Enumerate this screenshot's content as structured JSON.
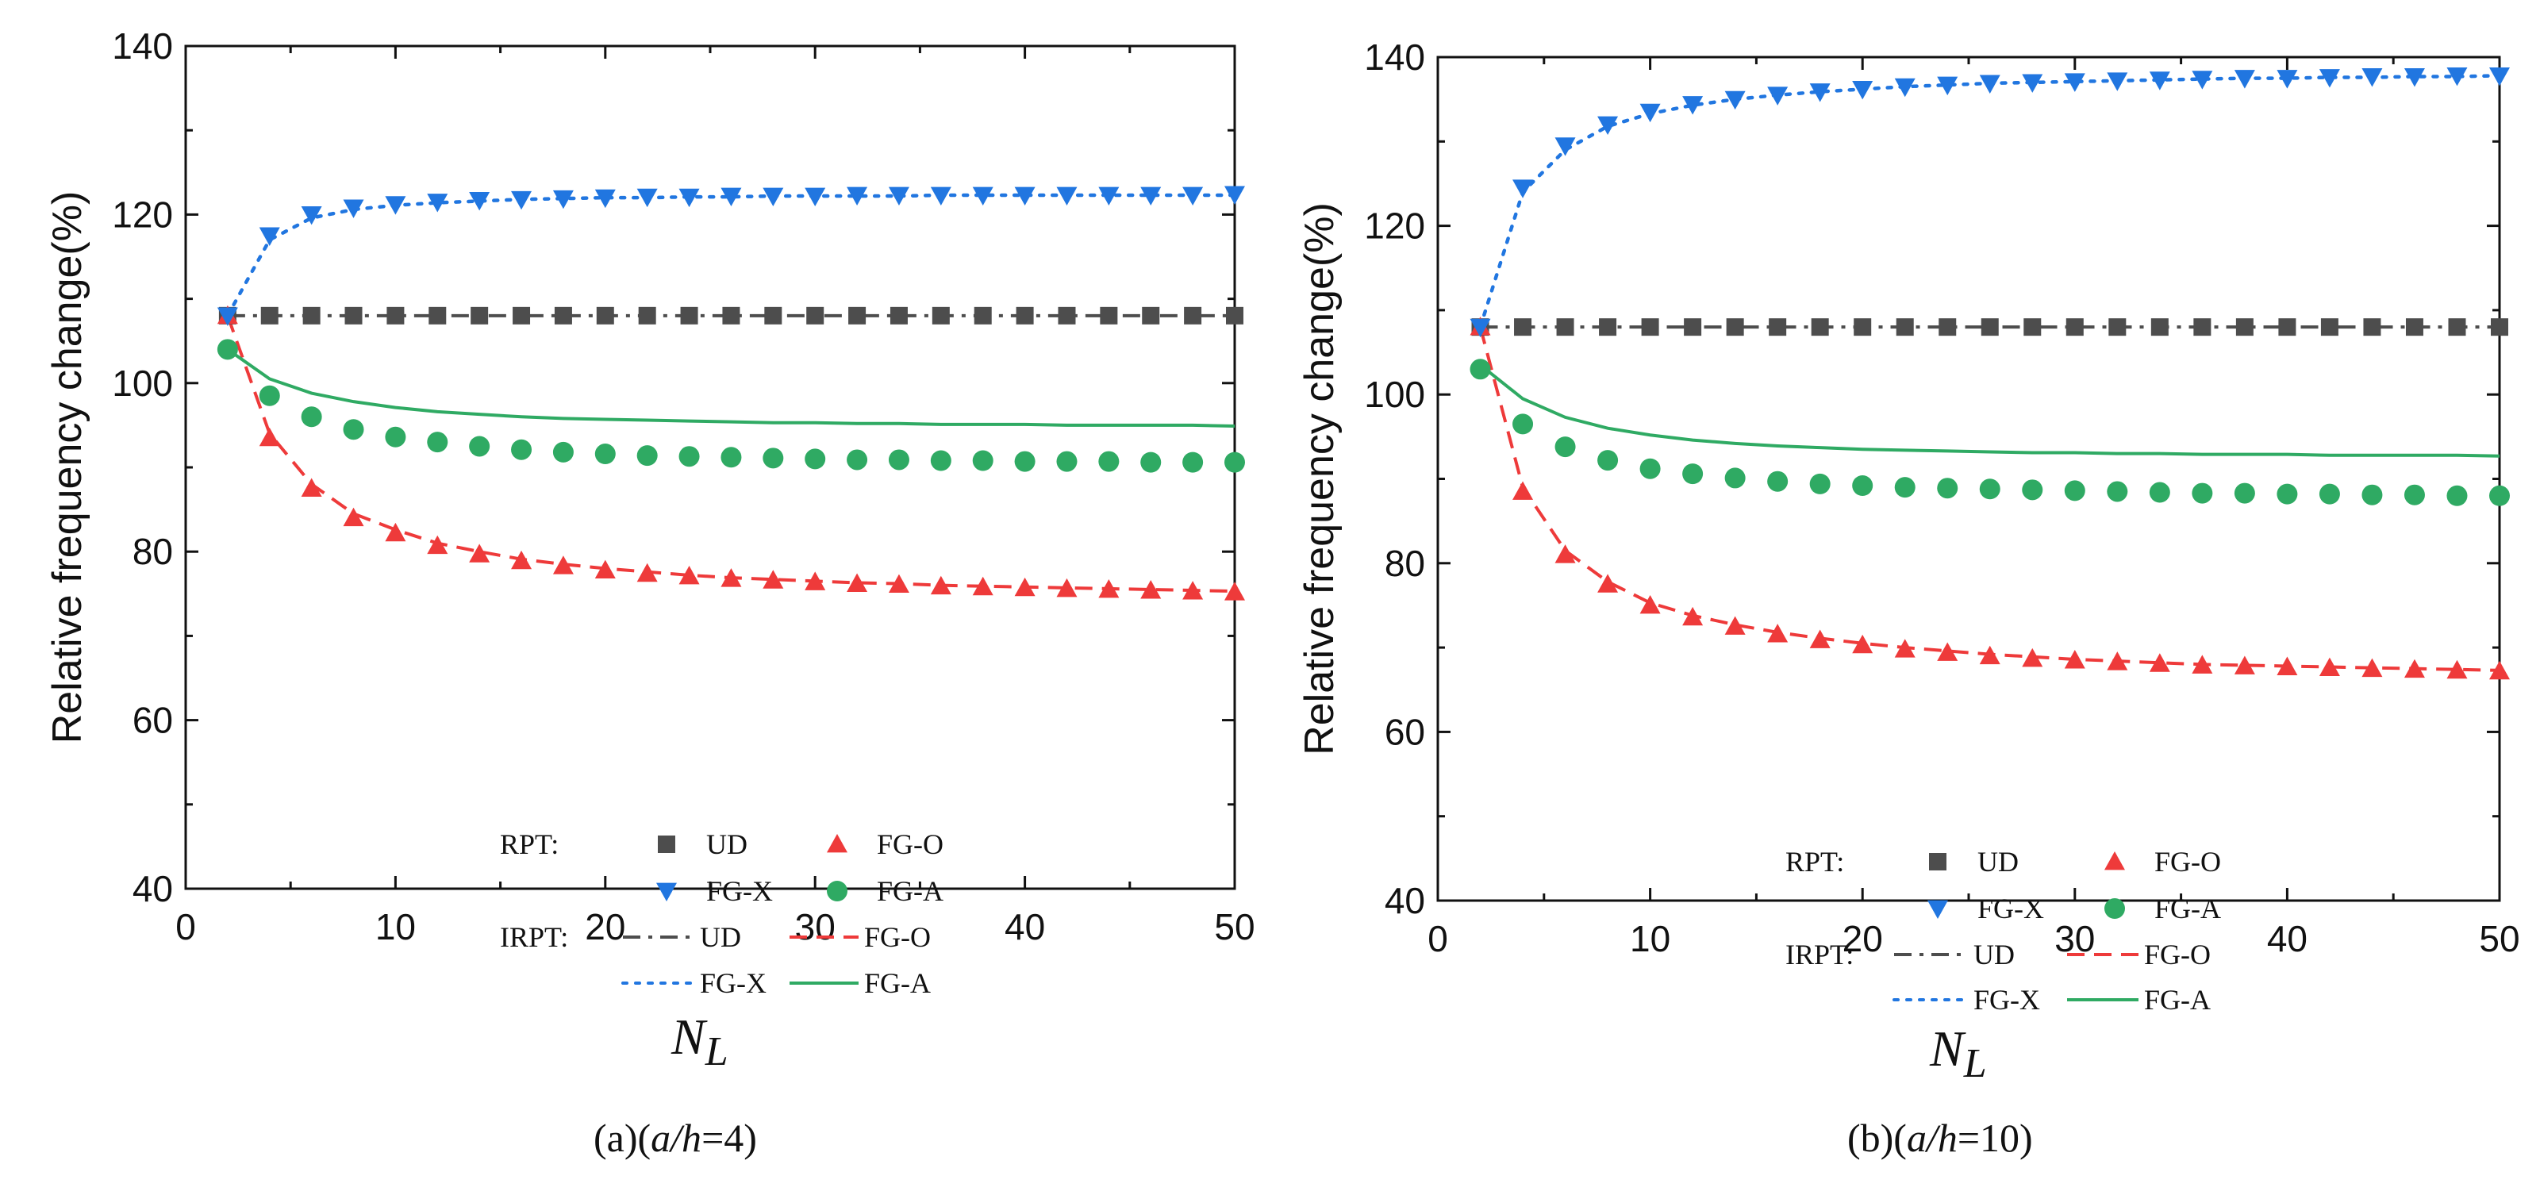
{
  "figure": {
    "x_axis_symbol": "N",
    "x_axis_subscript": "L",
    "legend": {
      "rpt_prefix": "RPT:",
      "irpt_prefix": "IRPT:"
    }
  },
  "colors": {
    "UD": "#4d4d4d",
    "FG-X": "#2176e0",
    "FG-O": "#ee3a3a",
    "FG-A": "#2faa63"
  },
  "chart_data": [
    {
      "type": "line",
      "caption_prefix": "(a)(",
      "caption_ratio": "a/h",
      "caption_suffix": "=4)",
      "ylabel": "Relative frequency change(%)",
      "xlim": [
        0,
        50
      ],
      "ylim": [
        40,
        140
      ],
      "xticks": [
        0,
        10,
        20,
        30,
        40,
        50
      ],
      "yticks": [
        40,
        60,
        80,
        100,
        120,
        140
      ],
      "x": [
        2,
        4,
        6,
        8,
        10,
        12,
        14,
        16,
        18,
        20,
        22,
        24,
        26,
        28,
        30,
        32,
        34,
        36,
        38,
        40,
        42,
        44,
        46,
        48,
        50
      ],
      "series": [
        {
          "name": "UD",
          "method": "RPT",
          "marker": "square",
          "values": [
            108,
            108,
            108,
            108,
            108,
            108,
            108,
            108,
            108,
            108,
            108,
            108,
            108,
            108,
            108,
            108,
            108,
            108,
            108,
            108,
            108,
            108,
            108,
            108,
            108
          ]
        },
        {
          "name": "FG-O",
          "method": "RPT",
          "marker": "triangle-up",
          "values": [
            108,
            93.5,
            87.5,
            84,
            82.2,
            80.7,
            79.7,
            78.9,
            78.3,
            77.8,
            77.4,
            77.1,
            76.8,
            76.6,
            76.4,
            76.2,
            76.1,
            75.9,
            75.8,
            75.7,
            75.6,
            75.5,
            75.4,
            75.3,
            75.2
          ]
        },
        {
          "name": "FG-X",
          "method": "RPT",
          "marker": "triangle-down",
          "values": [
            108,
            117.5,
            120,
            120.8,
            121.2,
            121.5,
            121.7,
            121.8,
            121.9,
            122,
            122.1,
            122.1,
            122.2,
            122.2,
            122.2,
            122.3,
            122.3,
            122.3,
            122.3,
            122.3,
            122.3,
            122.3,
            122.3,
            122.3,
            122.4
          ]
        },
        {
          "name": "FG-A",
          "method": "RPT",
          "marker": "circle",
          "values": [
            104,
            98.5,
            96,
            94.5,
            93.6,
            93,
            92.5,
            92.1,
            91.8,
            91.6,
            91.4,
            91.3,
            91.2,
            91.1,
            91,
            90.9,
            90.9,
            90.8,
            90.8,
            90.7,
            90.7,
            90.7,
            90.6,
            90.6,
            90.6
          ]
        },
        {
          "name": "UD",
          "method": "IRPT",
          "dash": "dashdot",
          "values": [
            108,
            108,
            108,
            108,
            108,
            108,
            108,
            108,
            108,
            108,
            108,
            108,
            108,
            108,
            108,
            108,
            108,
            108,
            108,
            108,
            108,
            108,
            108,
            108,
            108
          ]
        },
        {
          "name": "FG-O",
          "method": "IRPT",
          "dash": "dash",
          "values": [
            108,
            94,
            88,
            84.5,
            82.6,
            81,
            80,
            79.1,
            78.5,
            78,
            77.6,
            77.2,
            76.9,
            76.7,
            76.5,
            76.3,
            76.2,
            76,
            75.9,
            75.8,
            75.7,
            75.6,
            75.5,
            75.4,
            75.3
          ]
        },
        {
          "name": "FG-X",
          "method": "IRPT",
          "dash": "dot",
          "values": [
            108,
            117,
            119.6,
            120.6,
            121.1,
            121.4,
            121.6,
            121.8,
            121.9,
            122,
            122,
            122.1,
            122.1,
            122.2,
            122.2,
            122.2,
            122.2,
            122.3,
            122.3,
            122.3,
            122.3,
            122.3,
            122.3,
            122.3,
            122.3
          ]
        },
        {
          "name": "FG-A",
          "method": "IRPT",
          "dash": "solid",
          "values": [
            104,
            100.5,
            98.8,
            97.8,
            97.1,
            96.6,
            96.3,
            96,
            95.8,
            95.7,
            95.6,
            95.5,
            95.4,
            95.3,
            95.3,
            95.2,
            95.2,
            95.1,
            95.1,
            95.1,
            95,
            95,
            95,
            95,
            94.9
          ]
        }
      ]
    },
    {
      "type": "line",
      "caption_prefix": "(b)(",
      "caption_ratio": "a/h",
      "caption_suffix": "=10)",
      "ylabel": "Relative frequency change(%)",
      "xlim": [
        0,
        50
      ],
      "ylim": [
        40,
        140
      ],
      "xticks": [
        0,
        10,
        20,
        30,
        40,
        50
      ],
      "yticks": [
        40,
        60,
        80,
        100,
        120,
        140
      ],
      "x": [
        2,
        4,
        6,
        8,
        10,
        12,
        14,
        16,
        18,
        20,
        22,
        24,
        26,
        28,
        30,
        32,
        34,
        36,
        38,
        40,
        42,
        44,
        46,
        48,
        50
      ],
      "series": [
        {
          "name": "UD",
          "method": "RPT",
          "marker": "square",
          "values": [
            108,
            108,
            108,
            108,
            108,
            108,
            108,
            108,
            108,
            108,
            108,
            108,
            108,
            108,
            108,
            108,
            108,
            108,
            108,
            108,
            108,
            108,
            108,
            108,
            108
          ]
        },
        {
          "name": "FG-O",
          "method": "RPT",
          "marker": "triangle-up",
          "values": [
            108,
            88.5,
            81,
            77.5,
            75,
            73.6,
            72.5,
            71.6,
            70.9,
            70.3,
            69.8,
            69.4,
            69,
            68.7,
            68.5,
            68.3,
            68.1,
            67.9,
            67.8,
            67.7,
            67.6,
            67.5,
            67.4,
            67.3,
            67.2
          ]
        },
        {
          "name": "FG-X",
          "method": "RPT",
          "marker": "triangle-down",
          "values": [
            108,
            124.5,
            129.5,
            132,
            133.5,
            134.4,
            135,
            135.5,
            135.9,
            136.2,
            136.5,
            136.7,
            136.9,
            137,
            137.1,
            137.2,
            137.3,
            137.4,
            137.5,
            137.5,
            137.6,
            137.7,
            137.7,
            137.8,
            137.8
          ]
        },
        {
          "name": "FG-A",
          "method": "RPT",
          "marker": "circle",
          "values": [
            103,
            96.5,
            93.8,
            92.2,
            91.2,
            90.6,
            90.1,
            89.7,
            89.4,
            89.2,
            89,
            88.9,
            88.8,
            88.7,
            88.6,
            88.5,
            88.4,
            88.3,
            88.3,
            88.2,
            88.2,
            88.1,
            88.1,
            88,
            88
          ]
        },
        {
          "name": "UD",
          "method": "IRPT",
          "dash": "dashdot",
          "values": [
            108,
            108,
            108,
            108,
            108,
            108,
            108,
            108,
            108,
            108,
            108,
            108,
            108,
            108,
            108,
            108,
            108,
            108,
            108,
            108,
            108,
            108,
            108,
            108,
            108
          ]
        },
        {
          "name": "FG-O",
          "method": "IRPT",
          "dash": "dash",
          "values": [
            108,
            89,
            81.5,
            77.8,
            75.3,
            73.8,
            72.7,
            71.8,
            71.1,
            70.5,
            70,
            69.6,
            69.2,
            68.9,
            68.6,
            68.4,
            68.2,
            68,
            67.9,
            67.8,
            67.7,
            67.6,
            67.5,
            67.4,
            67.3
          ]
        },
        {
          "name": "FG-X",
          "method": "IRPT",
          "dash": "dot",
          "values": [
            108,
            124,
            129,
            131.8,
            133.3,
            134.3,
            135,
            135.5,
            135.9,
            136.2,
            136.5,
            136.7,
            136.9,
            137,
            137.1,
            137.2,
            137.3,
            137.4,
            137.5,
            137.5,
            137.6,
            137.6,
            137.7,
            137.7,
            137.8
          ]
        },
        {
          "name": "FG-A",
          "method": "IRPT",
          "dash": "solid",
          "values": [
            103.5,
            99.5,
            97.3,
            96,
            95.2,
            94.6,
            94.2,
            93.9,
            93.7,
            93.5,
            93.4,
            93.3,
            93.2,
            93.1,
            93.1,
            93,
            93,
            92.9,
            92.9,
            92.9,
            92.8,
            92.8,
            92.8,
            92.8,
            92.7
          ]
        }
      ]
    }
  ]
}
